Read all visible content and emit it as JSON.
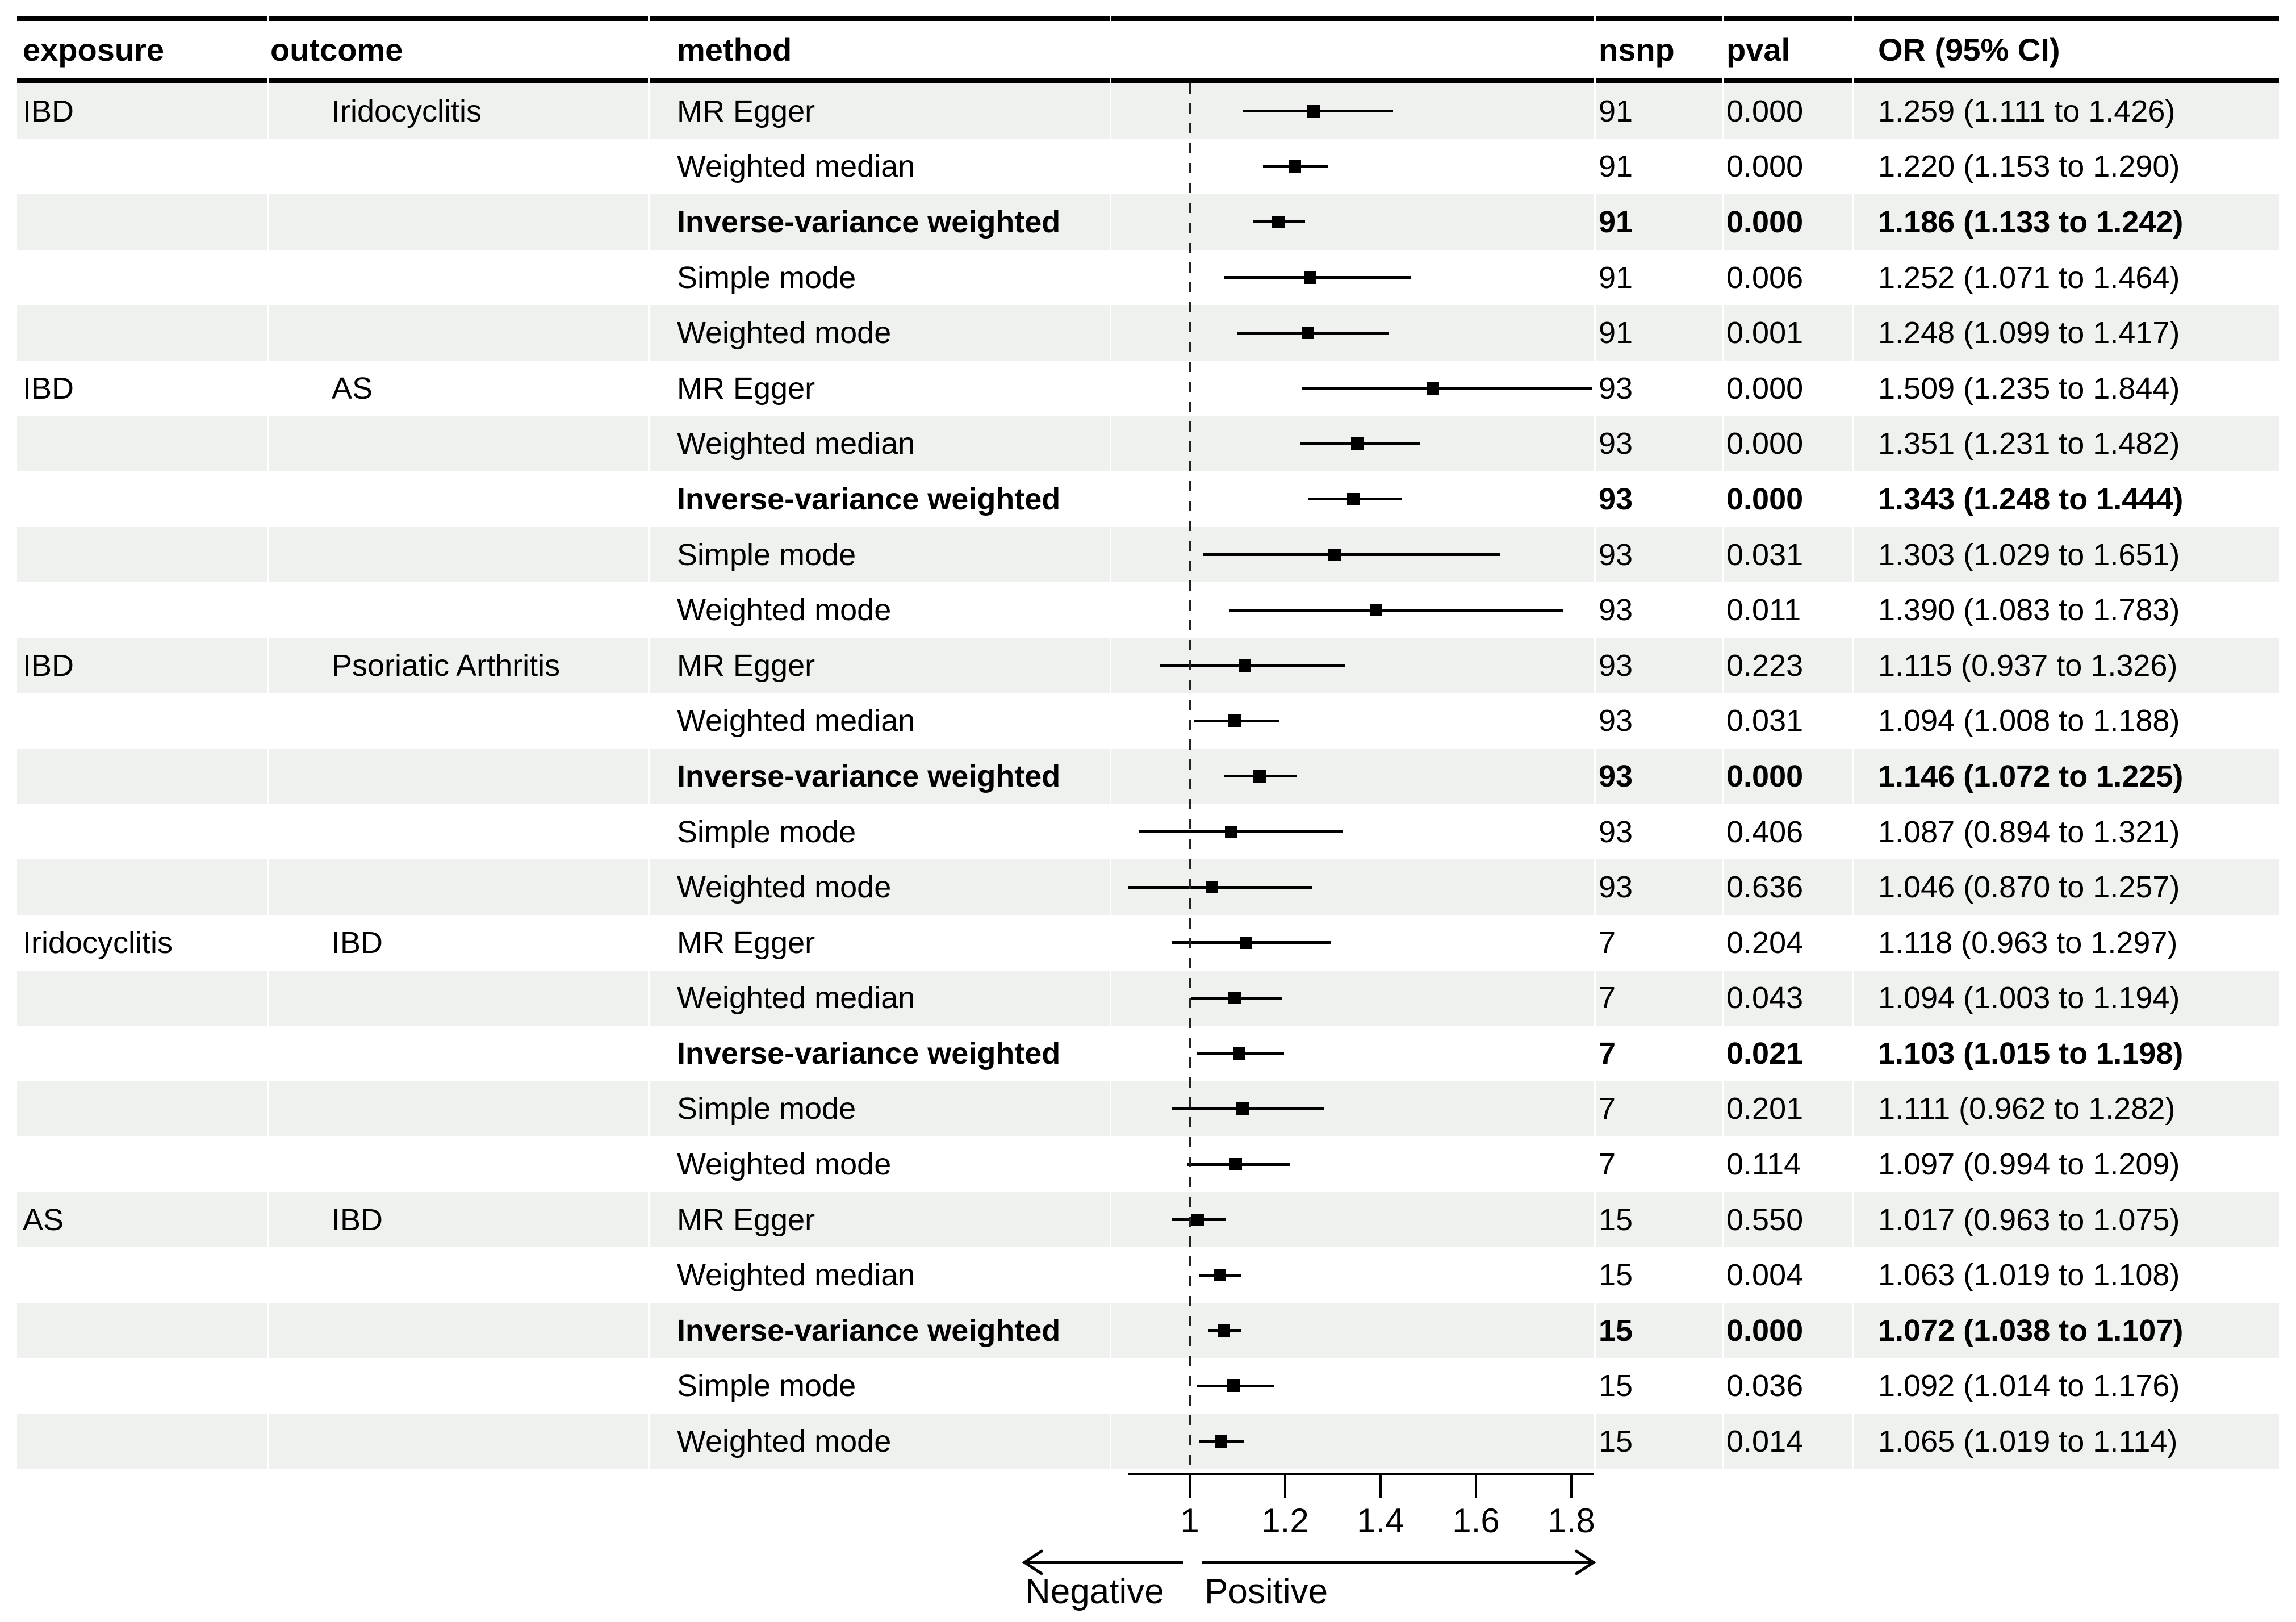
{
  "header": {
    "exposure": "exposure",
    "outcome": "outcome",
    "method": "method",
    "nsnp": "nsnp",
    "pval": "pval",
    "or_ci": "OR (95% CI)"
  },
  "axis": {
    "ticks": [
      "1",
      "1.2",
      "1.4",
      "1.6",
      "1.8"
    ],
    "negative_label": "Negative",
    "positive_label": "Positive"
  },
  "colors": {
    "stripe": "#eef1ee",
    "ink": "#000000",
    "background": "#ffffff"
  },
  "chart_data": {
    "type": "forest",
    "title": "",
    "x_axis": {
      "tick_values": [
        1,
        1.2,
        1.4,
        1.6,
        1.8
      ],
      "reference_line": 1,
      "plotted_range": [
        0.87,
        1.85
      ]
    },
    "direction_labels": {
      "negative": "Negative",
      "positive": "Positive"
    },
    "rows": [
      {
        "exposure": "IBD",
        "outcome": "Iridocyclitis",
        "method": "MR Egger",
        "nsnp": "91",
        "pval": "0.000",
        "or_ci": "1.259 (1.111 to 1.426)",
        "or": 1.259,
        "ci_low": 1.111,
        "ci_high": 1.426,
        "bold": false
      },
      {
        "exposure": "",
        "outcome": "",
        "method": "Weighted median",
        "nsnp": "91",
        "pval": "0.000",
        "or_ci": "1.220 (1.153 to 1.290)",
        "or": 1.22,
        "ci_low": 1.153,
        "ci_high": 1.29,
        "bold": false
      },
      {
        "exposure": "",
        "outcome": "",
        "method": "Inverse-variance weighted",
        "nsnp": "91",
        "pval": "0.000",
        "or_ci": "1.186 (1.133 to 1.242)",
        "or": 1.186,
        "ci_low": 1.133,
        "ci_high": 1.242,
        "bold": true
      },
      {
        "exposure": "",
        "outcome": "",
        "method": "Simple mode",
        "nsnp": "91",
        "pval": "0.006",
        "or_ci": "1.252 (1.071 to 1.464)",
        "or": 1.252,
        "ci_low": 1.071,
        "ci_high": 1.464,
        "bold": false
      },
      {
        "exposure": "",
        "outcome": "",
        "method": "Weighted mode",
        "nsnp": "91",
        "pval": "0.001",
        "or_ci": "1.248 (1.099 to 1.417)",
        "or": 1.248,
        "ci_low": 1.099,
        "ci_high": 1.417,
        "bold": false
      },
      {
        "exposure": "IBD",
        "outcome": "AS",
        "method": "MR Egger",
        "nsnp": "93",
        "pval": "0.000",
        "or_ci": "1.509 (1.235 to 1.844)",
        "or": 1.509,
        "ci_low": 1.235,
        "ci_high": 1.844,
        "bold": false
      },
      {
        "exposure": "",
        "outcome": "",
        "method": "Weighted median",
        "nsnp": "93",
        "pval": "0.000",
        "or_ci": "1.351 (1.231 to 1.482)",
        "or": 1.351,
        "ci_low": 1.231,
        "ci_high": 1.482,
        "bold": false
      },
      {
        "exposure": "",
        "outcome": "",
        "method": "Inverse-variance weighted",
        "nsnp": "93",
        "pval": "0.000",
        "or_ci": "1.343 (1.248 to 1.444)",
        "or": 1.343,
        "ci_low": 1.248,
        "ci_high": 1.444,
        "bold": true
      },
      {
        "exposure": "",
        "outcome": "",
        "method": "Simple mode",
        "nsnp": "93",
        "pval": "0.031",
        "or_ci": "1.303 (1.029 to 1.651)",
        "or": 1.303,
        "ci_low": 1.029,
        "ci_high": 1.651,
        "bold": false
      },
      {
        "exposure": "",
        "outcome": "",
        "method": "Weighted mode",
        "nsnp": "93",
        "pval": "0.011",
        "or_ci": "1.390 (1.083 to 1.783)",
        "or": 1.39,
        "ci_low": 1.083,
        "ci_high": 1.783,
        "bold": false
      },
      {
        "exposure": "IBD",
        "outcome": "Psoriatic Arthritis",
        "method": "MR Egger",
        "nsnp": "93",
        "pval": "0.223",
        "or_ci": "1.115 (0.937 to 1.326)",
        "or": 1.115,
        "ci_low": 0.937,
        "ci_high": 1.326,
        "bold": false
      },
      {
        "exposure": "",
        "outcome": "",
        "method": "Weighted median",
        "nsnp": "93",
        "pval": "0.031",
        "or_ci": "1.094 (1.008 to 1.188)",
        "or": 1.094,
        "ci_low": 1.008,
        "ci_high": 1.188,
        "bold": false
      },
      {
        "exposure": "",
        "outcome": "",
        "method": "Inverse-variance weighted",
        "nsnp": "93",
        "pval": "0.000",
        "or_ci": "1.146 (1.072 to 1.225)",
        "or": 1.146,
        "ci_low": 1.072,
        "ci_high": 1.225,
        "bold": true
      },
      {
        "exposure": "",
        "outcome": "",
        "method": "Simple mode",
        "nsnp": "93",
        "pval": "0.406",
        "or_ci": "1.087 (0.894 to 1.321)",
        "or": 1.087,
        "ci_low": 0.894,
        "ci_high": 1.321,
        "bold": false
      },
      {
        "exposure": "",
        "outcome": "",
        "method": "Weighted mode",
        "nsnp": "93",
        "pval": "0.636",
        "or_ci": "1.046 (0.870 to 1.257)",
        "or": 1.046,
        "ci_low": 0.87,
        "ci_high": 1.257,
        "bold": false
      },
      {
        "exposure": "Iridocyclitis",
        "outcome": "IBD",
        "method": "MR Egger",
        "nsnp": "7",
        "pval": "0.204",
        "or_ci": "1.118 (0.963 to 1.297)",
        "or": 1.118,
        "ci_low": 0.963,
        "ci_high": 1.297,
        "bold": false
      },
      {
        "exposure": "",
        "outcome": "",
        "method": "Weighted median",
        "nsnp": "7",
        "pval": "0.043",
        "or_ci": "1.094 (1.003 to 1.194)",
        "or": 1.094,
        "ci_low": 1.003,
        "ci_high": 1.194,
        "bold": false
      },
      {
        "exposure": "",
        "outcome": "",
        "method": "Inverse-variance weighted",
        "nsnp": "7",
        "pval": "0.021",
        "or_ci": "1.103 (1.015 to 1.198)",
        "or": 1.103,
        "ci_low": 1.015,
        "ci_high": 1.198,
        "bold": true
      },
      {
        "exposure": "",
        "outcome": "",
        "method": "Simple mode",
        "nsnp": "7",
        "pval": "0.201",
        "or_ci": "1.111 (0.962 to 1.282)",
        "or": 1.111,
        "ci_low": 0.962,
        "ci_high": 1.282,
        "bold": false
      },
      {
        "exposure": "",
        "outcome": "",
        "method": "Weighted mode",
        "nsnp": "7",
        "pval": "0.114",
        "or_ci": "1.097 (0.994 to 1.209)",
        "or": 1.097,
        "ci_low": 0.994,
        "ci_high": 1.209,
        "bold": false
      },
      {
        "exposure": "AS",
        "outcome": "IBD",
        "method": "MR Egger",
        "nsnp": "15",
        "pval": "0.550",
        "or_ci": "1.017 (0.963 to 1.075)",
        "or": 1.017,
        "ci_low": 0.963,
        "ci_high": 1.075,
        "bold": false
      },
      {
        "exposure": "",
        "outcome": "",
        "method": "Weighted median",
        "nsnp": "15",
        "pval": "0.004",
        "or_ci": "1.063 (1.019 to 1.108)",
        "or": 1.063,
        "ci_low": 1.019,
        "ci_high": 1.108,
        "bold": false
      },
      {
        "exposure": "",
        "outcome": "",
        "method": "Inverse-variance weighted",
        "nsnp": "15",
        "pval": "0.000",
        "or_ci": "1.072 (1.038 to 1.107)",
        "or": 1.072,
        "ci_low": 1.038,
        "ci_high": 1.107,
        "bold": true
      },
      {
        "exposure": "",
        "outcome": "",
        "method": "Simple mode",
        "nsnp": "15",
        "pval": "0.036",
        "or_ci": "1.092 (1.014 to 1.176)",
        "or": 1.092,
        "ci_low": 1.014,
        "ci_high": 1.176,
        "bold": false
      },
      {
        "exposure": "",
        "outcome": "",
        "method": "Weighted mode",
        "nsnp": "15",
        "pval": "0.014",
        "or_ci": "1.065 (1.019 to 1.114)",
        "or": 1.065,
        "ci_low": 1.019,
        "ci_high": 1.114,
        "bold": false
      }
    ]
  }
}
